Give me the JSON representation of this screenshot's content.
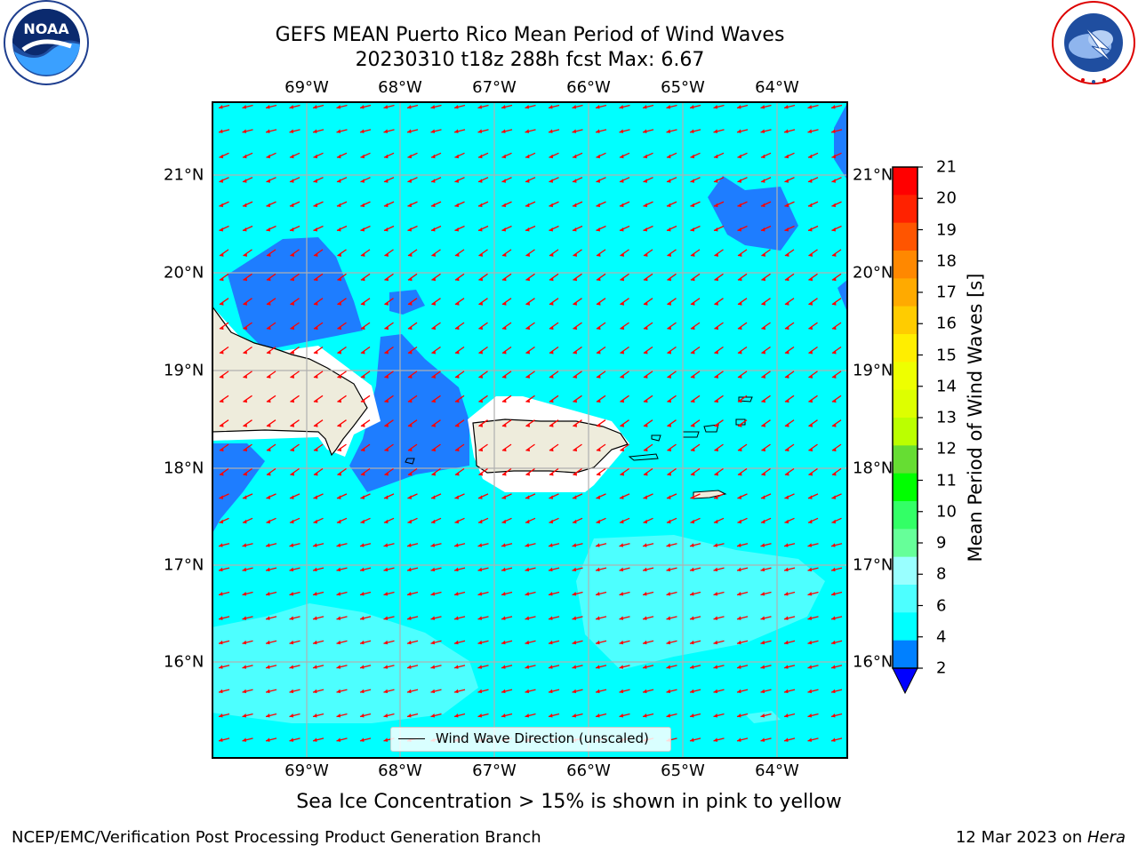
{
  "title": {
    "line1": "GEFS MEAN Puerto Rico Mean Period of Wind Waves",
    "line2": "20230310 t18z 288h fcst   Max: 6.67"
  },
  "map": {
    "lon_labels": [
      "69°W",
      "68°W",
      "67°W",
      "66°W",
      "65°W",
      "64°W"
    ],
    "lat_labels": [
      "21°N",
      "20°N",
      "19°N",
      "18°N",
      "17°N",
      "16°N"
    ],
    "lon_range": [
      -70.0,
      -63.25
    ],
    "lat_range": [
      15.0,
      21.75
    ],
    "grid": true,
    "vector_color": "#ff0000",
    "vector_direction": "from east-northeast toward west-southwest",
    "colors": {
      "ocean_default": "#00ffff",
      "low_period": "#1e7dff",
      "high_period": "#4dffff",
      "land": "#eeecdc",
      "coast": "#000000"
    }
  },
  "legend": {
    "label": "Wind Wave Direction (unscaled)"
  },
  "colorbar": {
    "title": "Mean Period of Wind Waves [s]",
    "tick_labels": [
      "21",
      "20",
      "19",
      "18",
      "17",
      "16",
      "15",
      "14",
      "13",
      "12",
      "11",
      "10",
      "9",
      "8",
      "6",
      "4",
      "2"
    ],
    "colors": [
      "#ff0000",
      "#ff2200",
      "#ff5500",
      "#ff8800",
      "#ffaa00",
      "#ffcc00",
      "#ffee00",
      "#eeff00",
      "#ddff00",
      "#bbff00",
      "#66dd33",
      "#00ff00",
      "#33ff66",
      "#66ff99",
      "#99ffff",
      "#4dffff",
      "#00ffff",
      "#0080ff"
    ],
    "extend_color": "#0000ff"
  },
  "note": "Sea Ice Concentration > 15% is shown in pink to yellow",
  "footer": {
    "left": "NCEP/EMC/Verification Post Processing Product Generation Branch",
    "right_prefix": "12 Mar 2023 on ",
    "right_host": "Hera"
  },
  "logos": {
    "noaa_text": "NOAA",
    "noaa_ring_text": "NATIONAL OCEANIC AND ATMOSPHERIC ADMINISTRATION • U.S. DEPARTMENT OF COMMERCE",
    "nws_ring_text": "NATIONAL WEATHER SERVICE"
  }
}
